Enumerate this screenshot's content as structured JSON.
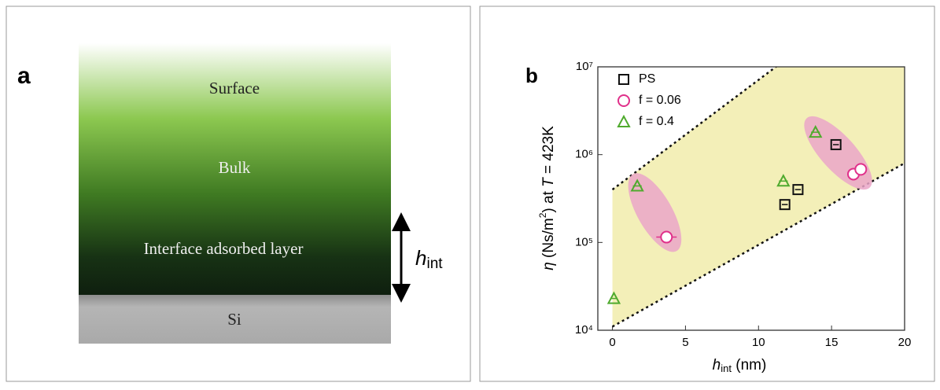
{
  "panel_a": {
    "label": "a",
    "layers": [
      "Surface",
      "Bulk",
      "Interface adsorbed layer",
      "Si"
    ],
    "dimension": [
      "h",
      "int"
    ]
  },
  "chart_data": {
    "type": "scatter",
    "label": "b",
    "xlabel": [
      "h",
      "int",
      " (nm)"
    ],
    "ylabel": [
      "η",
      " (Ns/m",
      "2",
      ") at ",
      "T",
      " = 423K"
    ],
    "xlim": [
      -1,
      20
    ],
    "xticks": [
      0,
      5,
      10,
      15,
      20
    ],
    "ylim": [
      10000,
      10000000
    ],
    "log_y": true,
    "yticks": [
      {
        "value": 10000,
        "label": "10⁴"
      },
      {
        "value": 100000,
        "label": "10⁵"
      },
      {
        "value": 1000000,
        "label": "10⁶"
      },
      {
        "value": 10000000,
        "label": "10⁷"
      }
    ],
    "legend": "top-left",
    "series": [
      {
        "name": "PS",
        "color": "#111111",
        "marker": "square",
        "x": [
          15.3,
          12.7,
          11.8
        ],
        "values": [
          1300000,
          400000,
          270000
        ],
        "xerr": [
          0.2,
          0.2,
          0.2
        ]
      },
      {
        "name": "f = 0.06",
        "color": "#e0308a",
        "marker": "circle",
        "x": [
          3.7,
          16.5,
          17.0
        ],
        "values": [
          115000,
          600000,
          680000
        ],
        "xerr": [
          0.7,
          0.2,
          0.2
        ]
      },
      {
        "name": "f = 0.4",
        "color": "#4faa2e",
        "marker": "triangle",
        "x": [
          0.1,
          1.7,
          11.7,
          13.9
        ],
        "values": [
          23000,
          440000,
          500000,
          1800000
        ],
        "xerr": [
          0.2,
          0.3,
          0.3,
          0.3
        ]
      }
    ],
    "reference_lines": [
      {
        "x": [
          0,
          20
        ],
        "y": [
          400000,
          126000000
        ]
      },
      {
        "x": [
          0,
          20
        ],
        "y": [
          11000,
          800000
        ]
      }
    ],
    "band_color": "#f3efb8",
    "highlights": [
      {
        "x": [
          1.4,
          4.4
        ],
        "y": [
          600000,
          80000
        ]
      },
      {
        "x": [
          13.3,
          17.6
        ],
        "y": [
          2600000,
          420000
        ]
      }
    ],
    "highlight_color": "#eaa6c8"
  }
}
